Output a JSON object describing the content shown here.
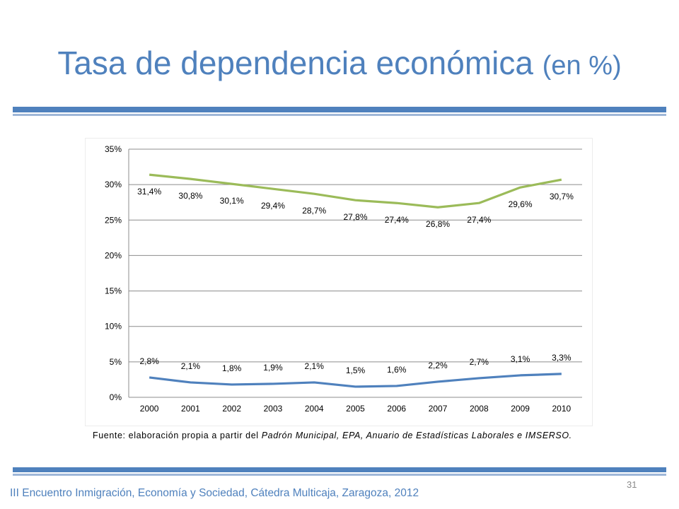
{
  "slide": {
    "title_main": "Tasa de dependencia económica ",
    "title_suffix": "(en %)",
    "source_prefix": "Fuente: elaboración propia a partir del ",
    "source_italic": "Padrón Municipal, EPA, Anuario de Estadísticas Laborales e IMSERSO.",
    "footer": "III Encuentro Inmigración, Economía y Sociedad, Cátedra Multicaja, Zaragoza, 2012",
    "page_number": "31",
    "colors": {
      "title": "#4f81bd",
      "rule": "#4f81bd",
      "rule_light": "#9fb7d8"
    }
  },
  "chart_data": {
    "type": "line",
    "categories": [
      "2000",
      "2001",
      "2002",
      "2003",
      "2004",
      "2005",
      "2006",
      "2007",
      "2008",
      "2009",
      "2010"
    ],
    "ylim": [
      0,
      35
    ],
    "yticks": [
      0,
      5,
      10,
      15,
      20,
      25,
      30,
      35
    ],
    "ytick_labels": [
      "0%",
      "5%",
      "10%",
      "15%",
      "20%",
      "25%",
      "30%",
      "35%"
    ],
    "grid": true,
    "legend": "none",
    "series": [
      {
        "color": "#9bbb59",
        "values": [
          31.4,
          30.8,
          30.1,
          29.4,
          28.7,
          27.8,
          27.4,
          26.8,
          27.4,
          29.6,
          30.7
        ],
        "labels": [
          "31,4%",
          "30,8%",
          "30,1%",
          "29,4%",
          "28,7%",
          "27,8%",
          "27,4%",
          "26,8%",
          "27,4%",
          "29,6%",
          "30,7%"
        ]
      },
      {
        "color": "#4f81bd",
        "values": [
          2.8,
          2.1,
          1.8,
          1.9,
          2.1,
          1.5,
          1.6,
          2.2,
          2.7,
          3.1,
          3.3
        ],
        "labels": [
          "2,8%",
          "2,1%",
          "1,8%",
          "1,9%",
          "2,1%",
          "1,5%",
          "1,6%",
          "2,2%",
          "2,7%",
          "3,1%",
          "3,3%"
        ]
      }
    ]
  }
}
